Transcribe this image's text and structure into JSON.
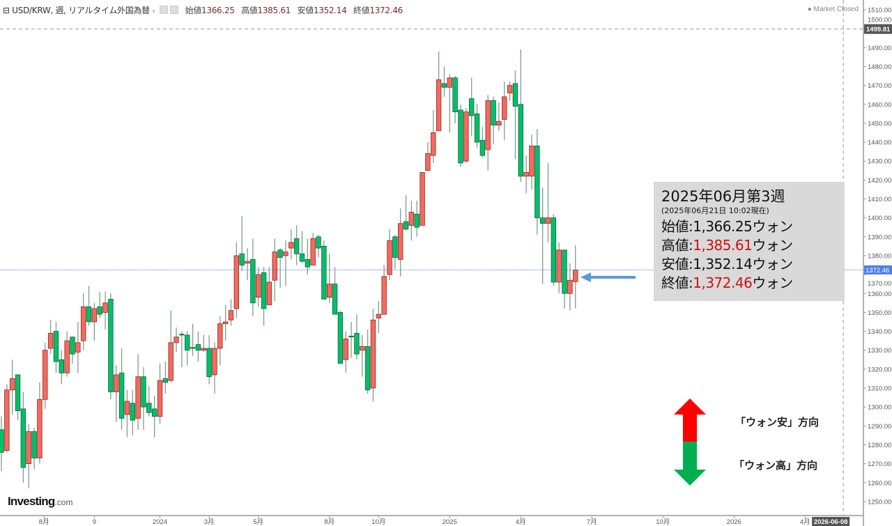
{
  "header": {
    "title": "USD/KRW, 週, リアルタイム外国為替",
    "open_label": "始値",
    "open": "1366.25",
    "high_label": "高値",
    "high": "1385.61",
    "low_label": "安値",
    "low": "1352.14",
    "close_label": "終値",
    "close": "1372.46"
  },
  "market_status": "Market Closed",
  "logo": {
    "name": "Investing",
    "suffix": ".com"
  },
  "info_box": {
    "title": "2025年06月第3週",
    "subtitle": "(2025年06月21日 10:02現在)",
    "rows": [
      {
        "label": "始値:",
        "value": "1,366.25",
        "unit": "ウォン",
        "highlight": false
      },
      {
        "label": "高値:",
        "value": "1,385.61",
        "unit": "ウォン",
        "highlight": true
      },
      {
        "label": "安値:",
        "value": "1,352.14",
        "unit": "ウォン",
        "highlight": false
      },
      {
        "label": "終値:",
        "value": "1,372.46",
        "unit": "ウォン",
        "highlight": true
      }
    ]
  },
  "legend_arrows": {
    "up_label": "「ウォン安」方向",
    "down_label": "「ウォン高」方向",
    "up_color": "#ff0000",
    "down_color": "#00b050"
  },
  "colors": {
    "up_candle": "#f36a5f",
    "down_candle": "#00c06b",
    "current_price": "#4f7fe8",
    "pointer_arrow": "#5b9bd5"
  },
  "chart_data": {
    "type": "candlestick",
    "symbol": "USD/KRW",
    "interval": "週",
    "ylim": [
      1245,
      1515
    ],
    "y_ticks": [
      "1250.00",
      "1260.00",
      "1270.00",
      "1280.00",
      "1290.00",
      "1300.00",
      "1310.00",
      "1320.00",
      "1330.00",
      "1340.00",
      "1350.00",
      "1360.00",
      "1370.00",
      "1380.00",
      "1390.00",
      "1400.00",
      "1410.00",
      "1420.00",
      "1430.00",
      "1440.00",
      "1450.00",
      "1460.00",
      "1470.00",
      "1480.00",
      "1490.00",
      "1500.00",
      "1510.00"
    ],
    "x_ticks": [
      {
        "label": "8月",
        "week": 7.8
      },
      {
        "label": "9",
        "week": 17
      },
      {
        "label": "2024",
        "week": 29
      },
      {
        "label": "3月",
        "week": 38
      },
      {
        "label": "5月",
        "week": 47
      },
      {
        "label": "8月",
        "week": 60
      },
      {
        "label": "10月",
        "week": 69
      },
      {
        "label": "2025",
        "week": 82
      },
      {
        "label": "4月",
        "week": 95
      },
      {
        "label": "7月",
        "week": 108
      },
      {
        "label": "10月",
        "week": 121
      },
      {
        "label": "2026",
        "week": 134
      },
      {
        "label": "4月",
        "week": 147
      }
    ],
    "crosshair_date": {
      "label": "2026-06-08",
      "week": 154
    },
    "crosshair_price": "1499.81",
    "crosshair_price_value": 1499.81,
    "current_price": "1372.46",
    "current_price_value": 1372.46,
    "ohlc_columns": [
      "open",
      "high",
      "low",
      "close"
    ],
    "candles": [
      [
        1288,
        1295,
        1266,
        1276
      ],
      [
        1277,
        1312,
        1276,
        1309
      ],
      [
        1309,
        1325,
        1296,
        1315
      ],
      [
        1317,
        1317,
        1293,
        1298
      ],
      [
        1299,
        1308,
        1260,
        1268
      ],
      [
        1270,
        1291,
        1257,
        1287
      ],
      [
        1287,
        1289,
        1267,
        1273
      ],
      [
        1273,
        1313,
        1270,
        1304
      ],
      [
        1304,
        1334,
        1299,
        1330
      ],
      [
        1331,
        1346,
        1328,
        1339
      ],
      [
        1340,
        1345,
        1318,
        1324
      ],
      [
        1325,
        1330,
        1312,
        1318
      ],
      [
        1318,
        1340,
        1316,
        1335
      ],
      [
        1337,
        1337,
        1323,
        1328
      ],
      [
        1329,
        1345,
        1318,
        1334
      ],
      [
        1335,
        1360,
        1330,
        1353
      ],
      [
        1353,
        1364,
        1343,
        1345
      ],
      [
        1345,
        1355,
        1335,
        1352
      ],
      [
        1353,
        1361,
        1347,
        1349
      ],
      [
        1350,
        1361,
        1341,
        1355
      ],
      [
        1357,
        1360,
        1304,
        1308
      ],
      [
        1308,
        1322,
        1292,
        1317
      ],
      [
        1318,
        1331,
        1288,
        1294
      ],
      [
        1296,
        1309,
        1284,
        1303
      ],
      [
        1302,
        1309,
        1285,
        1293
      ],
      [
        1294,
        1328,
        1288,
        1316
      ],
      [
        1316,
        1321,
        1288,
        1300
      ],
      [
        1302,
        1311,
        1295,
        1297
      ],
      [
        1299,
        1306,
        1284,
        1295
      ],
      [
        1295,
        1323,
        1291,
        1314
      ],
      [
        1315,
        1324,
        1307,
        1313
      ],
      [
        1314,
        1351,
        1313,
        1334
      ],
      [
        1334,
        1342,
        1329,
        1337
      ],
      [
        1338.5,
        1340,
        1321,
        1338
      ],
      [
        1338,
        1340,
        1322,
        1330
      ],
      [
        1331.5,
        1344,
        1327,
        1331
      ],
      [
        1333,
        1340,
        1324,
        1330
      ],
      [
        1330,
        1338,
        1329,
        1331
      ],
      [
        1331,
        1338,
        1312,
        1316
      ],
      [
        1317,
        1334,
        1307,
        1331
      ],
      [
        1331,
        1348,
        1322,
        1344
      ],
      [
        1344,
        1354,
        1335,
        1345
      ],
      [
        1346,
        1357,
        1343,
        1351
      ],
      [
        1352,
        1387,
        1347,
        1380
      ],
      [
        1381,
        1401,
        1372,
        1375
      ],
      [
        1376,
        1384,
        1367,
        1377
      ],
      [
        1378,
        1389,
        1348,
        1355
      ],
      [
        1358,
        1374,
        1353,
        1370
      ],
      [
        1371,
        1374,
        1343,
        1352
      ],
      [
        1354,
        1374,
        1354,
        1366
      ],
      [
        1367,
        1389,
        1356,
        1382
      ],
      [
        1383,
        1384,
        1363,
        1379
      ],
      [
        1380,
        1388,
        1364,
        1382
      ],
      [
        1384,
        1394,
        1378,
        1387
      ],
      [
        1389,
        1396,
        1375,
        1381
      ],
      [
        1381,
        1393,
        1376,
        1377
      ],
      [
        1378,
        1389,
        1370,
        1374
      ],
      [
        1375,
        1392,
        1375,
        1389
      ],
      [
        1390,
        1391,
        1379,
        1384
      ],
      [
        1385,
        1388,
        1357,
        1357
      ],
      [
        1358,
        1381,
        1355,
        1365
      ],
      [
        1365,
        1374,
        1349,
        1349
      ],
      [
        1350,
        1351,
        1323,
        1323
      ],
      [
        1325,
        1340,
        1318,
        1336
      ],
      [
        1337.5,
        1345,
        1326,
        1337
      ],
      [
        1339,
        1349,
        1325,
        1328
      ],
      [
        1330,
        1338,
        1316,
        1332
      ],
      [
        1332,
        1341,
        1307,
        1309
      ],
      [
        1310,
        1352,
        1303,
        1346
      ],
      [
        1347,
        1356,
        1339,
        1349
      ],
      [
        1349,
        1375,
        1349,
        1369
      ],
      [
        1370,
        1394,
        1367,
        1388
      ],
      [
        1390,
        1391,
        1373,
        1379
      ],
      [
        1378,
        1405,
        1369,
        1397
      ],
      [
        1398,
        1412,
        1393,
        1394
      ],
      [
        1396,
        1409,
        1388,
        1403
      ],
      [
        1402,
        1409,
        1390,
        1395
      ],
      [
        1396,
        1424,
        1396,
        1424
      ],
      [
        1425,
        1440,
        1425,
        1434
      ],
      [
        1433,
        1457,
        1429,
        1445
      ],
      [
        1446,
        1488,
        1446,
        1473
      ],
      [
        1471,
        1480,
        1464,
        1469
      ],
      [
        1469,
        1476,
        1445,
        1474
      ],
      [
        1474,
        1475,
        1450,
        1456
      ],
      [
        1457,
        1460,
        1427,
        1429
      ],
      [
        1430,
        1458,
        1429,
        1456
      ],
      [
        1463,
        1474,
        1443,
        1454
      ],
      [
        1455,
        1460,
        1437,
        1440
      ],
      [
        1441,
        1448,
        1432,
        1433
      ],
      [
        1436,
        1465,
        1425,
        1462
      ],
      [
        1462,
        1464,
        1439,
        1449
      ],
      [
        1449,
        1461,
        1446,
        1451
      ],
      [
        1452,
        1472,
        1441,
        1464
      ],
      [
        1466,
        1472,
        1462,
        1470
      ],
      [
        1471,
        1478,
        1431,
        1459
      ],
      [
        1460,
        1489,
        1419,
        1422
      ],
      [
        1422,
        1433,
        1413,
        1424
      ],
      [
        1422,
        1444,
        1415,
        1438
      ],
      [
        1438,
        1447,
        1391,
        1400
      ],
      [
        1400,
        1416,
        1365,
        1397
      ],
      [
        1397,
        1429,
        1387,
        1400
      ],
      [
        1400,
        1402,
        1364,
        1366
      ],
      [
        1366,
        1387,
        1360,
        1383
      ],
      [
        1383,
        1383,
        1352,
        1360
      ],
      [
        1360,
        1376,
        1351,
        1367
      ],
      [
        1366.25,
        1385.61,
        1352.14,
        1372.46
      ]
    ]
  }
}
